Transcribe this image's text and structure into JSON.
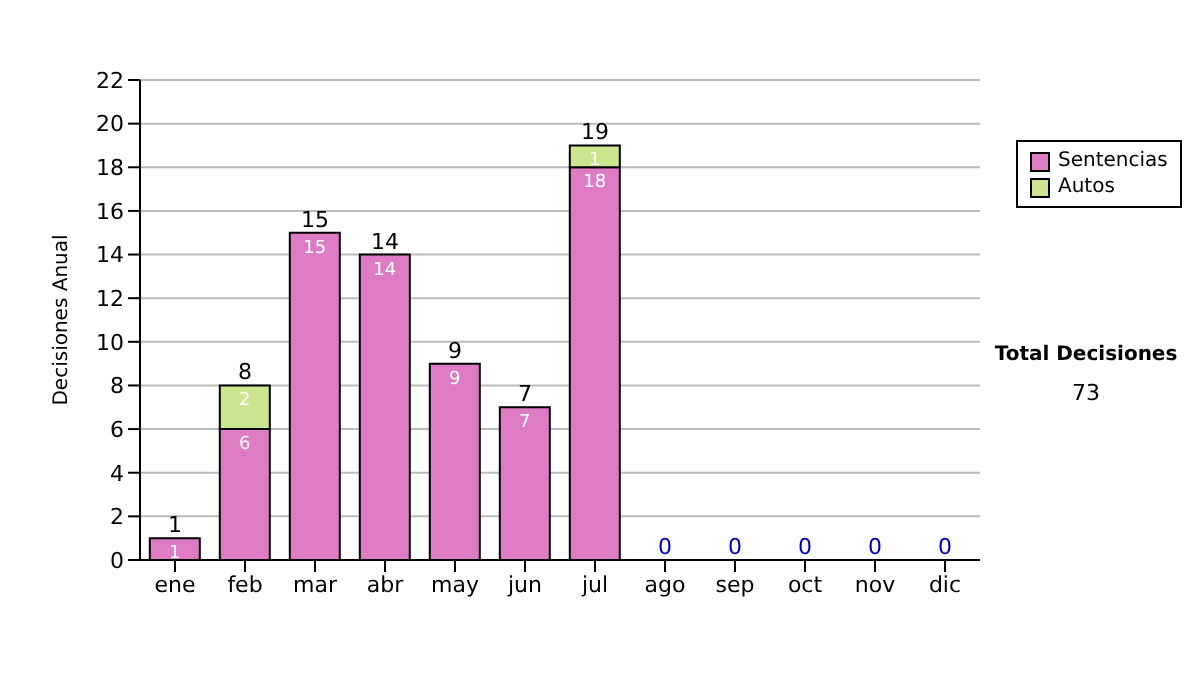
{
  "chart_data": {
    "type": "bar",
    "stacked": true,
    "ylabel": "Decisiones Anual",
    "categories": [
      "ene",
      "feb",
      "mar",
      "abr",
      "may",
      "jun",
      "jul",
      "ago",
      "sep",
      "oct",
      "nov",
      "dic"
    ],
    "series": [
      {
        "name": "Sentencias",
        "color": "#dd7cc4",
        "values": [
          1,
          6,
          15,
          14,
          9,
          7,
          18,
          0,
          0,
          0,
          0,
          0
        ],
        "value_labels": [
          "1",
          "6",
          "15",
          "14",
          "9",
          "7",
          "18",
          null,
          null,
          null,
          null,
          null
        ]
      },
      {
        "name": "Autos",
        "color": "#cce690",
        "values": [
          0,
          2,
          0,
          0,
          0,
          0,
          1,
          0,
          0,
          0,
          0,
          0
        ],
        "value_labels": [
          null,
          "2",
          null,
          null,
          null,
          null,
          "1",
          null,
          null,
          null,
          null,
          null
        ]
      }
    ],
    "totals": [
      "1",
      "8",
      "15",
      "14",
      "9",
      "7",
      "19",
      "0",
      "0",
      "0",
      "0",
      "0"
    ],
    "ylim": [
      0,
      22
    ],
    "yticks": [
      0,
      2,
      4,
      6,
      8,
      10,
      12,
      14,
      16,
      18,
      20,
      22
    ],
    "grid": "y",
    "legend": "right",
    "annotations": [
      "Total Decisiones",
      "73"
    ]
  }
}
